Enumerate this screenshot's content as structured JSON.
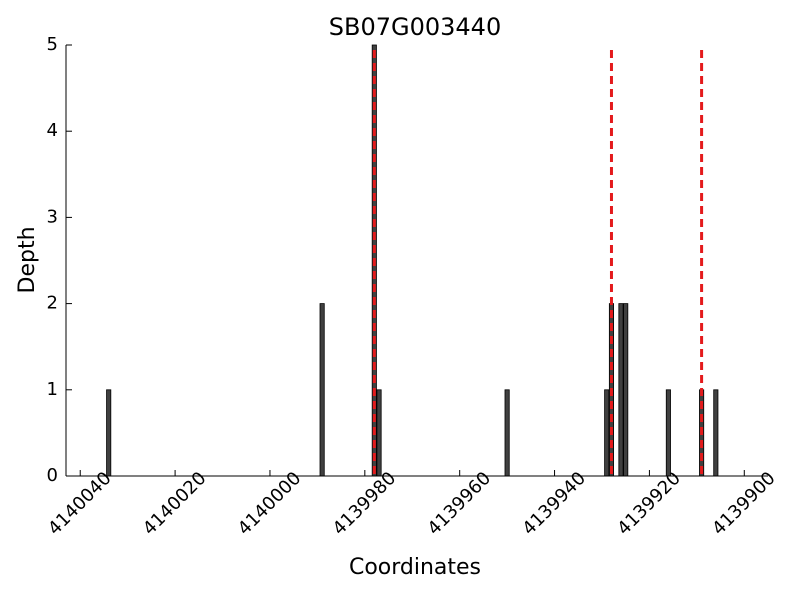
{
  "chart_data": {
    "type": "bar",
    "title": "SB07G003440",
    "x_label": "Coordinates",
    "y_label": "Depth",
    "x": [
      4140034,
      4139989,
      4139978,
      4139977,
      4139950,
      4139929,
      4139928,
      4139926,
      4139925,
      4139916,
      4139909,
      4139906
    ],
    "values": [
      1,
      2,
      5,
      1,
      1,
      1,
      2,
      2,
      2,
      1,
      1,
      1
    ],
    "color": "#404040",
    "vlines": [
      4139978,
      4139928,
      4139909
    ],
    "vline_color": "#e41a1c",
    "xlim": [
      4140043,
      4139895
    ],
    "xticks": [
      4140040,
      4140020,
      4140000,
      4139980,
      4139960,
      4139940,
      4139920,
      4139900
    ],
    "ylim": [
      0,
      5
    ],
    "yticks": [
      0,
      1,
      2,
      3,
      4,
      5
    ]
  }
}
